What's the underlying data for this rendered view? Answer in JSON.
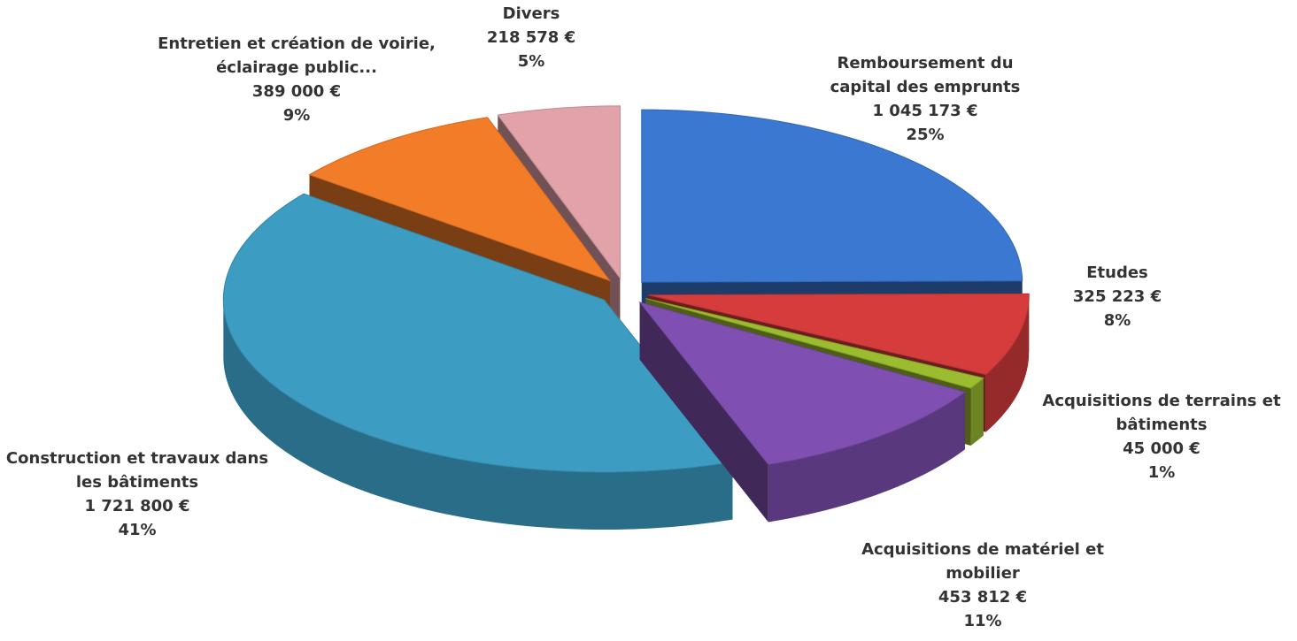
{
  "chart_data": {
    "type": "pie3d",
    "categories": [
      "Remboursement du capital des emprunts",
      "Etudes",
      "Acquisitions de terrains et bâtiments",
      "Acquisitions de matériel et mobilier",
      "Construction et travaux dans les bâtiments",
      "Entretien et création de voirie, éclairage public...",
      "Divers"
    ],
    "values": [
      1045173,
      325223,
      45000,
      453812,
      1721800,
      389000,
      218578
    ],
    "value_labels": [
      "1 045 173 €",
      "325 223 €",
      "45 000 €",
      "453 812 €",
      "1 721 800 €",
      "389 000 €",
      "218 578 €"
    ],
    "percentages": [
      25,
      8,
      1,
      11,
      41,
      9,
      5
    ],
    "percentage_labels": [
      "25%",
      "8%",
      "1%",
      "11%",
      "41%",
      "9%",
      "5%"
    ],
    "colors": [
      "#3a78d2",
      "#d63c3c",
      "#9cbc30",
      "#7f50b2",
      "#3c9cc2",
      "#f27c28",
      "#e2a2aa"
    ]
  }
}
